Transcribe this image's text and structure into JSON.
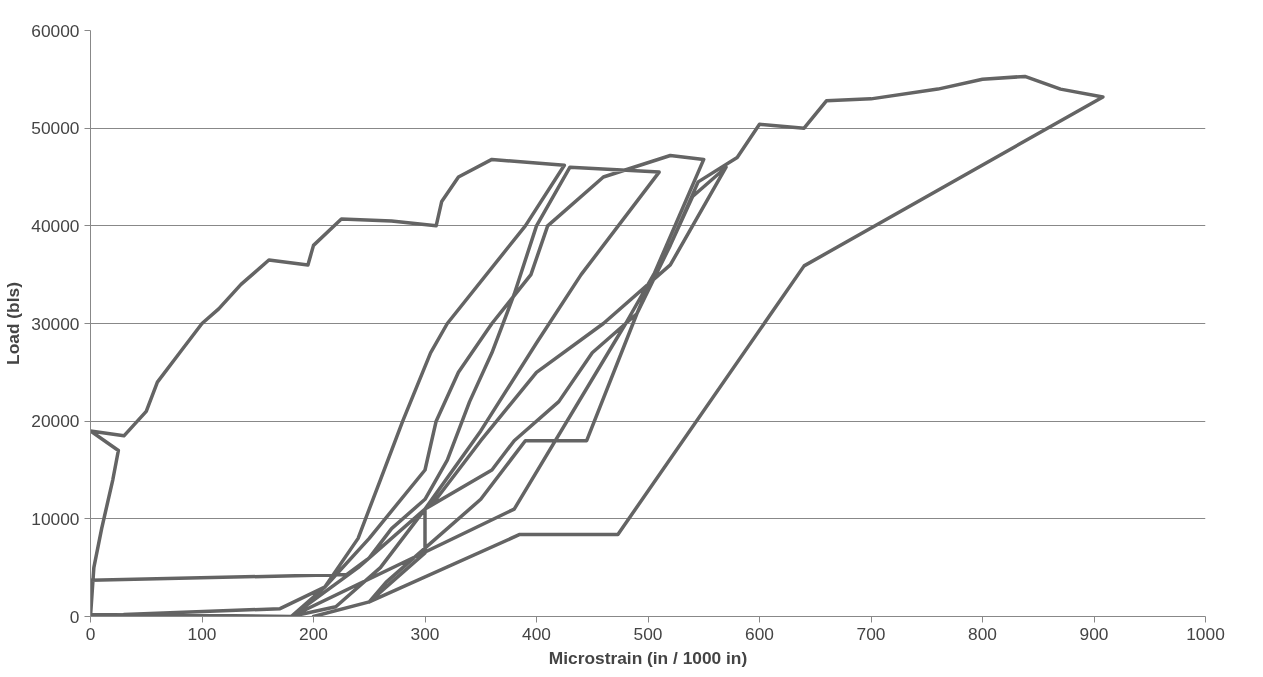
{
  "chart_data": {
    "type": "line",
    "xlabel": "Microstrain (in / 1000 in)",
    "ylabel": "Load (bls)",
    "xlim": [
      0,
      1000
    ],
    "ylim": [
      0,
      60000
    ],
    "xticks": [
      0,
      100,
      200,
      300,
      400,
      500,
      600,
      700,
      800,
      900,
      1000
    ],
    "yticks": [
      0,
      10000,
      20000,
      30000,
      40000,
      50000,
      60000
    ],
    "grid": "y",
    "marker": "none",
    "line_style": "solid",
    "series": [
      {
        "color": "#646464",
        "x": [
          0,
          3,
          10,
          20,
          25,
          0,
          30,
          50,
          60,
          80,
          100,
          115,
          135,
          160,
          195,
          200,
          225,
          270,
          310,
          315,
          330,
          360,
          425,
          390,
          320,
          305,
          280,
          260,
          240,
          210,
          180,
          0,
          0,
          230,
          250,
          270,
          300,
          320,
          340,
          360,
          380,
          400,
          430,
          510,
          440,
          400,
          350,
          300,
          260,
          220,
          180,
          30,
          170,
          210,
          250,
          300,
          310,
          330,
          360,
          395,
          410,
          460,
          520,
          550,
          490,
          450,
          420,
          380,
          360,
          300,
          300,
          250,
          265,
          290,
          350,
          390,
          445,
          490,
          520,
          540,
          570,
          520,
          460,
          400,
          350,
          310,
          240,
          180,
          380,
          480,
          520,
          545,
          580,
          600,
          640,
          660,
          700,
          760,
          800,
          838,
          870,
          908,
          640,
          473,
          385,
          250,
          200
        ],
        "values": [
          0,
          5000,
          9000,
          14000,
          17000,
          19000,
          18500,
          21000,
          24000,
          27000,
          30000,
          31500,
          34000,
          36500,
          36000,
          38000,
          40700,
          40500,
          40000,
          42500,
          45000,
          46800,
          46200,
          40000,
          30000,
          27000,
          20000,
          14000,
          8000,
          3000,
          0,
          200,
          3700,
          4300,
          6000,
          9000,
          12000,
          16000,
          22000,
          27000,
          33000,
          40000,
          46000,
          45500,
          35000,
          28000,
          19000,
          11000,
          5000,
          1000,
          0,
          200,
          800,
          3000,
          8000,
          15000,
          20000,
          25000,
          30000,
          35000,
          40000,
          45000,
          47200,
          46800,
          31000,
          27000,
          22000,
          18000,
          15000,
          11000,
          6500,
          1500,
          3500,
          6000,
          12000,
          18000,
          18000,
          31000,
          38000,
          43000,
          46000,
          36000,
          30000,
          25000,
          18000,
          12000,
          5000,
          0,
          11000,
          30000,
          38000,
          44500,
          47000,
          50400,
          50000,
          52800,
          53000,
          54000,
          55000,
          55300,
          54000,
          53200,
          35900,
          8400,
          8400,
          1500,
          0
        ]
      }
    ]
  }
}
